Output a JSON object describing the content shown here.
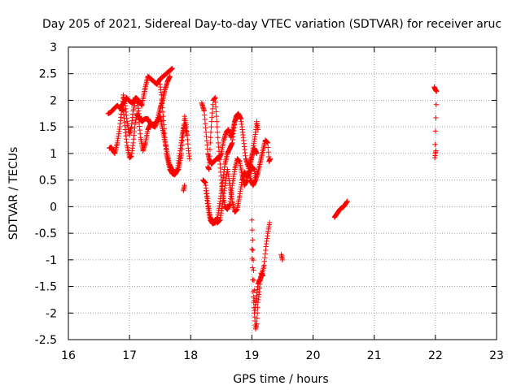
{
  "chart_data": {
    "type": "scatter",
    "title": "Day 205 of 2021, Sidereal Day-to-day VTEC variation (SDTVAR) for receiver aruc",
    "xlabel": "GPS time / hours",
    "ylabel": "SDTVAR / TECUs",
    "xlim": [
      16,
      23
    ],
    "ylim": [
      -2.5,
      3
    ],
    "xticks": [
      "16",
      "17",
      "18",
      "19",
      "20",
      "21",
      "22",
      "23"
    ],
    "yticks": [
      "3",
      "2.5",
      "2",
      "1.5",
      "1",
      "0.5",
      "0",
      "-0.5",
      "-1",
      "-1.5",
      "-2",
      "-2.5"
    ],
    "grid": true,
    "marker": "+",
    "series_color": "#ff0000",
    "tracks": [
      {
        "name": "track-1",
        "points": [
          [
            16.65,
            1.75
          ],
          [
            16.7,
            1.78
          ],
          [
            16.75,
            1.85
          ],
          [
            16.8,
            1.9
          ],
          [
            16.85,
            1.85
          ],
          [
            16.9,
            1.95
          ],
          [
            16.95,
            2.05
          ],
          [
            17.0,
            1.98
          ],
          [
            17.05,
            1.95
          ],
          [
            17.1,
            2.05
          ],
          [
            17.15,
            2.0
          ],
          [
            17.2,
            1.9
          ],
          [
            17.25,
            2.2
          ],
          [
            17.3,
            2.45
          ],
          [
            17.35,
            2.4
          ],
          [
            17.4,
            2.35
          ],
          [
            17.45,
            2.3
          ],
          [
            17.5,
            2.4
          ],
          [
            17.55,
            2.45
          ],
          [
            17.6,
            2.5
          ],
          [
            17.65,
            2.55
          ],
          [
            17.7,
            2.6
          ]
        ]
      },
      {
        "name": "track-2",
        "points": [
          [
            16.67,
            1.1
          ],
          [
            16.7,
            1.12
          ],
          [
            16.73,
            1.05
          ],
          [
            16.76,
            1.0
          ],
          [
            16.8,
            1.2
          ],
          [
            16.84,
            1.5
          ],
          [
            16.87,
            1.8
          ],
          [
            16.9,
            2.1
          ],
          [
            16.93,
            1.9
          ],
          [
            16.96,
            1.6
          ],
          [
            17.0,
            1.35
          ],
          [
            17.03,
            1.5
          ],
          [
            17.06,
            1.8
          ],
          [
            17.1,
            2.05
          ],
          [
            17.13,
            1.95
          ],
          [
            17.16,
            1.7
          ],
          [
            17.2,
            1.6
          ],
          [
            17.25,
            1.65
          ],
          [
            17.3,
            1.65
          ],
          [
            17.35,
            1.55
          ],
          [
            17.4,
            1.55
          ],
          [
            17.45,
            1.6
          ],
          [
            17.5,
            1.7
          ],
          [
            17.55,
            1.4
          ],
          [
            17.6,
            1.1
          ],
          [
            17.65,
            0.8
          ],
          [
            17.7,
            0.68
          ],
          [
            17.75,
            0.65
          ],
          [
            17.8,
            0.7
          ],
          [
            17.85,
            1.0
          ],
          [
            17.88,
            1.4
          ],
          [
            17.9,
            1.7
          ],
          [
            17.93,
            1.5
          ],
          [
            17.96,
            1.1
          ],
          [
            17.98,
            0.9
          ]
        ]
      },
      {
        "name": "track-3",
        "points": [
          [
            16.86,
            1.85
          ],
          [
            16.9,
            1.8
          ],
          [
            16.93,
            1.45
          ],
          [
            16.96,
            1.15
          ],
          [
            17.0,
            0.92
          ],
          [
            17.03,
            0.95
          ],
          [
            17.06,
            1.2
          ],
          [
            17.09,
            1.55
          ],
          [
            17.12,
            1.75
          ],
          [
            17.15,
            1.65
          ],
          [
            17.18,
            1.3
          ],
          [
            17.22,
            1.05
          ],
          [
            17.26,
            1.2
          ],
          [
            17.3,
            1.45
          ],
          [
            17.34,
            1.55
          ],
          [
            17.38,
            1.52
          ],
          [
            17.42,
            1.5
          ],
          [
            17.46,
            1.65
          ],
          [
            17.5,
            1.85
          ],
          [
            17.54,
            2.0
          ],
          [
            17.58,
            2.2
          ],
          [
            17.62,
            2.35
          ],
          [
            17.66,
            2.45
          ]
        ]
      },
      {
        "name": "track-4",
        "points": [
          [
            17.5,
            2.3
          ],
          [
            17.52,
            2.1
          ],
          [
            17.55,
            1.7
          ],
          [
            17.58,
            1.3
          ],
          [
            17.6,
            1.0
          ],
          [
            17.63,
            0.85
          ],
          [
            17.66,
            0.7
          ],
          [
            17.7,
            0.62
          ],
          [
            17.74,
            0.6
          ],
          [
            17.78,
            0.68
          ],
          [
            17.82,
            1.0
          ],
          [
            17.86,
            1.35
          ],
          [
            17.9,
            1.55
          ],
          [
            17.94,
            1.35
          ]
        ]
      },
      {
        "name": "track-5",
        "points": [
          [
            17.88,
            0.3
          ],
          [
            17.9,
            0.4
          ]
        ]
      },
      {
        "name": "track-6",
        "points": [
          [
            18.18,
            1.95
          ],
          [
            18.22,
            1.8
          ],
          [
            18.25,
            1.4
          ],
          [
            18.28,
            1.0
          ],
          [
            18.3,
            0.9
          ],
          [
            18.34,
            0.8
          ],
          [
            18.38,
            0.85
          ],
          [
            18.42,
            0.9
          ],
          [
            18.46,
            0.9
          ],
          [
            18.5,
            1.0
          ],
          [
            18.54,
            1.25
          ],
          [
            18.58,
            1.4
          ],
          [
            18.62,
            1.45
          ],
          [
            18.66,
            1.3
          ],
          [
            18.7,
            1.5
          ],
          [
            18.74,
            1.7
          ],
          [
            18.78,
            1.75
          ],
          [
            18.82,
            1.65
          ],
          [
            18.86,
            1.3
          ],
          [
            18.9,
            0.9
          ],
          [
            18.94,
            0.75
          ],
          [
            18.98,
            0.8
          ],
          [
            19.02,
            1.1
          ],
          [
            19.06,
            1.4
          ],
          [
            19.08,
            1.6
          ],
          [
            19.1,
            1.45
          ]
        ]
      },
      {
        "name": "track-7",
        "points": [
          [
            18.28,
            0.75
          ],
          [
            18.3,
            0.7
          ],
          [
            18.32,
            1.2
          ],
          [
            18.34,
            1.6
          ],
          [
            18.37,
            2.0
          ],
          [
            18.4,
            2.05
          ],
          [
            18.42,
            1.7
          ],
          [
            18.45,
            1.2
          ],
          [
            18.48,
            0.8
          ],
          [
            18.5,
            0.5
          ],
          [
            18.53,
            0.2
          ],
          [
            18.56,
            0.0
          ],
          [
            18.6,
            -0.05
          ],
          [
            18.64,
            0.05
          ],
          [
            18.68,
            0.4
          ],
          [
            18.72,
            0.7
          ],
          [
            18.76,
            0.9
          ],
          [
            18.8,
            0.85
          ],
          [
            18.84,
            0.6
          ],
          [
            18.88,
            0.4
          ],
          [
            18.92,
            0.5
          ],
          [
            18.96,
            0.8
          ],
          [
            19.0,
            0.95
          ],
          [
            19.04,
            1.1
          ],
          [
            19.08,
            1.0
          ]
        ]
      },
      {
        "name": "track-8",
        "points": [
          [
            18.2,
            0.5
          ],
          [
            18.24,
            0.45
          ],
          [
            18.28,
            0.1
          ],
          [
            18.32,
            -0.2
          ],
          [
            18.36,
            -0.3
          ],
          [
            18.4,
            -0.25
          ],
          [
            18.44,
            -0.3
          ],
          [
            18.48,
            -0.25
          ],
          [
            18.52,
            0.05
          ],
          [
            18.56,
            0.4
          ],
          [
            18.6,
            0.7
          ],
          [
            18.64,
            0.4
          ],
          [
            18.68,
            0.1
          ],
          [
            18.72,
            -0.1
          ],
          [
            18.76,
            -0.05
          ],
          [
            18.8,
            0.2
          ],
          [
            18.84,
            0.5
          ],
          [
            18.88,
            0.65
          ],
          [
            18.92,
            0.55
          ],
          [
            18.96,
            0.65
          ],
          [
            19.0,
            0.75
          ],
          [
            19.04,
            0.7
          ],
          [
            19.06,
            0.55
          ]
        ]
      },
      {
        "name": "track-9",
        "points": [
          [
            18.25,
            0.3
          ],
          [
            18.28,
            0.0
          ],
          [
            18.32,
            -0.25
          ],
          [
            18.36,
            -0.32
          ],
          [
            18.4,
            -0.3
          ],
          [
            18.44,
            -0.2
          ],
          [
            18.48,
            0.1
          ],
          [
            18.52,
            0.45
          ],
          [
            18.56,
            0.8
          ],
          [
            18.6,
            1.0
          ],
          [
            18.64,
            1.1
          ],
          [
            18.68,
            1.2
          ],
          [
            18.72,
            1.6
          ],
          [
            18.76,
            1.7
          ],
          [
            18.8,
            1.7
          ]
        ]
      },
      {
        "name": "track-10",
        "points": [
          [
            19.0,
            -0.25
          ],
          [
            19.05,
            -1.95
          ],
          [
            19.1,
            -1.45
          ],
          [
            19.14,
            -1.35
          ],
          [
            19.17,
            -1.25
          ],
          [
            19.2,
            -1.1
          ],
          [
            19.23,
            -0.75
          ],
          [
            19.26,
            -0.5
          ],
          [
            19.29,
            -0.3
          ]
        ]
      },
      {
        "name": "track-11",
        "points": [
          [
            19.0,
            -0.8
          ],
          [
            19.01,
            -1.15
          ],
          [
            19.02,
            -1.6
          ],
          [
            19.04,
            -2.0
          ],
          [
            19.06,
            -2.3
          ],
          [
            19.08,
            -2.2
          ],
          [
            19.1,
            -1.8
          ],
          [
            19.12,
            -1.6
          ],
          [
            19.15,
            -1.25
          ],
          [
            19.18,
            -1.3
          ]
        ]
      },
      {
        "name": "track-12",
        "points": [
          [
            18.95,
            0.65
          ],
          [
            18.98,
            0.5
          ],
          [
            19.02,
            0.4
          ],
          [
            19.06,
            0.5
          ],
          [
            19.1,
            0.65
          ],
          [
            19.14,
            0.85
          ],
          [
            19.18,
            1.05
          ],
          [
            19.22,
            1.25
          ],
          [
            19.26,
            1.2
          ],
          [
            19.28,
            0.85
          ],
          [
            19.3,
            0.9
          ]
        ]
      },
      {
        "name": "track-13",
        "points": [
          [
            19.48,
            -0.9
          ],
          [
            19.5,
            -1.0
          ]
        ]
      },
      {
        "name": "track-14",
        "points": [
          [
            20.35,
            -0.2
          ],
          [
            20.38,
            -0.15
          ],
          [
            20.41,
            -0.1
          ],
          [
            20.44,
            -0.05
          ],
          [
            20.47,
            -0.02
          ],
          [
            20.5,
            0.0
          ],
          [
            20.53,
            0.05
          ],
          [
            20.56,
            0.1
          ]
        ]
      },
      {
        "name": "track-15",
        "points": [
          [
            21.98,
            2.25
          ],
          [
            22.0,
            2.2
          ],
          [
            22.02,
            2.17
          ],
          [
            21.99,
            0.92
          ],
          [
            22.0,
            1.0
          ],
          [
            22.01,
            1.05
          ]
        ]
      }
    ]
  }
}
